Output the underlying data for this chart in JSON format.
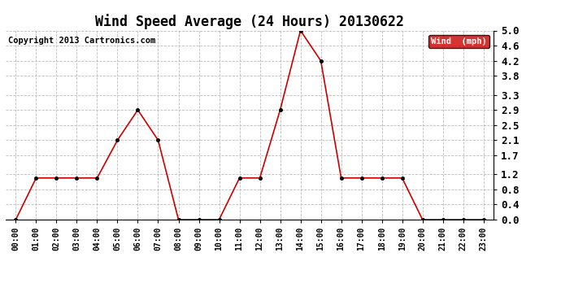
{
  "title": "Wind Speed Average (24 Hours) 20130622",
  "copyright": "Copyright 2013 Cartronics.com",
  "legend_label": "Wind  (mph)",
  "x_labels": [
    "00:00",
    "01:00",
    "02:00",
    "03:00",
    "04:00",
    "05:00",
    "06:00",
    "07:00",
    "08:00",
    "09:00",
    "10:00",
    "11:00",
    "12:00",
    "13:00",
    "14:00",
    "15:00",
    "16:00",
    "17:00",
    "18:00",
    "19:00",
    "20:00",
    "21:00",
    "22:00",
    "23:00"
  ],
  "y_values": [
    0.0,
    1.1,
    1.1,
    1.1,
    1.1,
    2.1,
    2.9,
    2.1,
    0.0,
    0.0,
    0.0,
    1.1,
    1.1,
    2.9,
    5.0,
    4.2,
    1.1,
    1.1,
    1.1,
    1.1,
    0.0,
    0.0,
    0.0,
    0.0
  ],
  "y_ticks": [
    0.0,
    0.4,
    0.8,
    1.2,
    1.7,
    2.1,
    2.5,
    2.9,
    3.3,
    3.8,
    4.2,
    4.6,
    5.0
  ],
  "ylim": [
    0.0,
    5.0
  ],
  "line_color": "#cc0000",
  "marker_size": 3,
  "background_color": "#ffffff",
  "grid_color": "#bbbbbb",
  "title_fontsize": 12,
  "copyright_fontsize": 7.5,
  "legend_bg": "#cc0000",
  "legend_fg": "#ffffff",
  "ytick_fontsize": 9,
  "xtick_fontsize": 7
}
